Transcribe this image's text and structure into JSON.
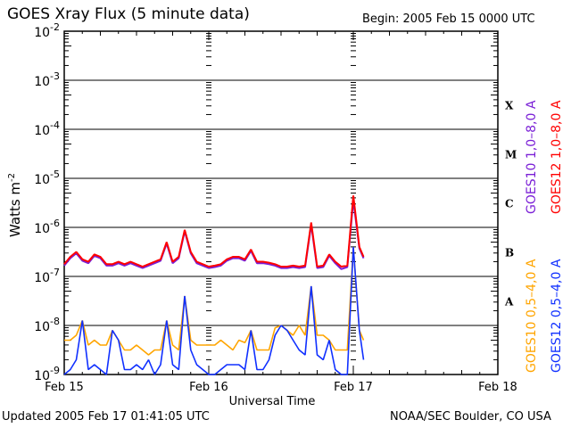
{
  "header": {
    "title": "GOES Xray Flux (5 minute data)",
    "begin": "Begin:  2005 Feb 15 0000 UTC"
  },
  "footer": {
    "updated": "Updated 2005 Feb 17 01:41:05 UTC",
    "credit": "NOAA/SEC Boulder, CO USA"
  },
  "chart_data": {
    "type": "line",
    "title": "GOES Xray Flux (5 minute data)",
    "xlabel": "Universal Time",
    "ylabel": "Watts m",
    "ylabel_sup": "-2",
    "yscale": "log",
    "ylim_log10": [
      -9,
      -2
    ],
    "xlim_hours": [
      0,
      72
    ],
    "x_ticks": [
      {
        "h": 0,
        "label": "Feb 15"
      },
      {
        "h": 24,
        "label": "Feb 16"
      },
      {
        "h": 48,
        "label": "Feb 17"
      },
      {
        "h": 72,
        "label": "Feb 18"
      }
    ],
    "y_ticks": [
      {
        "base": "10",
        "exp": "-2"
      },
      {
        "base": "10",
        "exp": "-3"
      },
      {
        "base": "10",
        "exp": "-4"
      },
      {
        "base": "10",
        "exp": "-5"
      },
      {
        "base": "10",
        "exp": "-6"
      },
      {
        "base": "10",
        "exp": "-7"
      },
      {
        "base": "10",
        "exp": "-8"
      },
      {
        "base": "10",
        "exp": "-9"
      }
    ],
    "flare_classes": [
      "X",
      "M",
      "C",
      "B",
      "A"
    ],
    "grid": "horizontal at each decade 1e-8..1e-3",
    "colors": {
      "goes10_long": "#7a1fd6",
      "goes12_long": "#ff0000",
      "goes10_short": "#ffa500",
      "goes12_short": "#1030ff"
    },
    "hours": [
      0,
      1,
      2,
      3,
      4,
      5,
      6,
      7,
      8,
      9,
      10,
      11,
      12,
      13,
      14,
      15,
      16,
      17,
      18,
      19,
      20,
      21,
      22,
      23,
      24,
      25,
      26,
      27,
      28,
      29,
      30,
      31,
      32,
      33,
      34,
      35,
      36,
      37,
      38,
      39,
      40,
      41,
      42,
      43,
      44,
      45,
      46,
      47,
      48,
      49,
      49.7
    ],
    "series": [
      {
        "name": "GOES10 1.0-8.0 A",
        "key": "goes10_long",
        "log10_values": [
          -6.78,
          -6.63,
          -6.53,
          -6.68,
          -6.73,
          -6.58,
          -6.63,
          -6.78,
          -6.78,
          -6.73,
          -6.78,
          -6.73,
          -6.78,
          -6.83,
          -6.78,
          -6.73,
          -6.68,
          -6.33,
          -6.73,
          -6.63,
          -6.08,
          -6.53,
          -6.73,
          -6.78,
          -6.83,
          -6.81,
          -6.78,
          -6.68,
          -6.63,
          -6.63,
          -6.68,
          -6.48,
          -6.73,
          -6.73,
          -6.75,
          -6.78,
          -6.83,
          -6.83,
          -6.81,
          -6.83,
          -6.81,
          -5.95,
          -6.83,
          -6.81,
          -6.58,
          -6.73,
          -6.85,
          -6.81,
          -5.45,
          -6.43,
          -6.63
        ]
      },
      {
        "name": "GOES12 1.0-8.0 A",
        "key": "goes12_long",
        "log10_values": [
          -6.75,
          -6.6,
          -6.5,
          -6.65,
          -6.7,
          -6.55,
          -6.6,
          -6.75,
          -6.75,
          -6.7,
          -6.75,
          -6.7,
          -6.75,
          -6.8,
          -6.75,
          -6.7,
          -6.65,
          -6.3,
          -6.7,
          -6.6,
          -6.05,
          -6.5,
          -6.7,
          -6.75,
          -6.8,
          -6.78,
          -6.75,
          -6.65,
          -6.6,
          -6.6,
          -6.65,
          -6.45,
          -6.7,
          -6.7,
          -6.72,
          -6.75,
          -6.8,
          -6.8,
          -6.78,
          -6.8,
          -6.78,
          -5.9,
          -6.8,
          -6.78,
          -6.55,
          -6.7,
          -6.8,
          -6.78,
          -5.35,
          -6.4,
          -6.6
        ]
      },
      {
        "name": "GOES10 0.5-4.0 A",
        "key": "goes10_short",
        "log10_values": [
          -8.3,
          -8.3,
          -8.2,
          -7.9,
          -8.4,
          -8.3,
          -8.4,
          -8.4,
          -8.1,
          -8.3,
          -8.5,
          -8.5,
          -8.4,
          -8.5,
          -8.6,
          -8.5,
          -8.5,
          -7.9,
          -8.4,
          -8.5,
          -7.4,
          -8.3,
          -8.4,
          -8.4,
          -8.4,
          -8.4,
          -8.3,
          -8.4,
          -8.5,
          -8.3,
          -8.35,
          -8.1,
          -8.5,
          -8.5,
          -8.5,
          -8.05,
          -8.0,
          -8.1,
          -8.2,
          -8.0,
          -8.2,
          -7.2,
          -8.2,
          -8.2,
          -8.3,
          -8.5,
          -8.5,
          -8.5,
          -6.4,
          -8.1,
          -8.3
        ]
      },
      {
        "name": "GOES12 0.5-4.0 A",
        "key": "goes12_short",
        "log10_values": [
          -9.0,
          -8.9,
          -8.7,
          -7.9,
          -8.9,
          -8.8,
          -8.9,
          -9.0,
          -8.1,
          -8.3,
          -8.9,
          -8.9,
          -8.8,
          -8.9,
          -8.7,
          -9.0,
          -8.8,
          -7.9,
          -8.8,
          -8.9,
          -7.4,
          -8.5,
          -8.8,
          -8.9,
          -9.0,
          -9.0,
          -8.9,
          -8.8,
          -8.8,
          -8.8,
          -8.9,
          -8.1,
          -8.9,
          -8.9,
          -8.7,
          -8.2,
          -8.0,
          -8.1,
          -8.3,
          -8.5,
          -8.6,
          -7.2,
          -8.6,
          -8.7,
          -8.3,
          -8.9,
          -9.0,
          -9.0,
          -6.4,
          -8.1,
          -8.7
        ]
      }
    ]
  }
}
